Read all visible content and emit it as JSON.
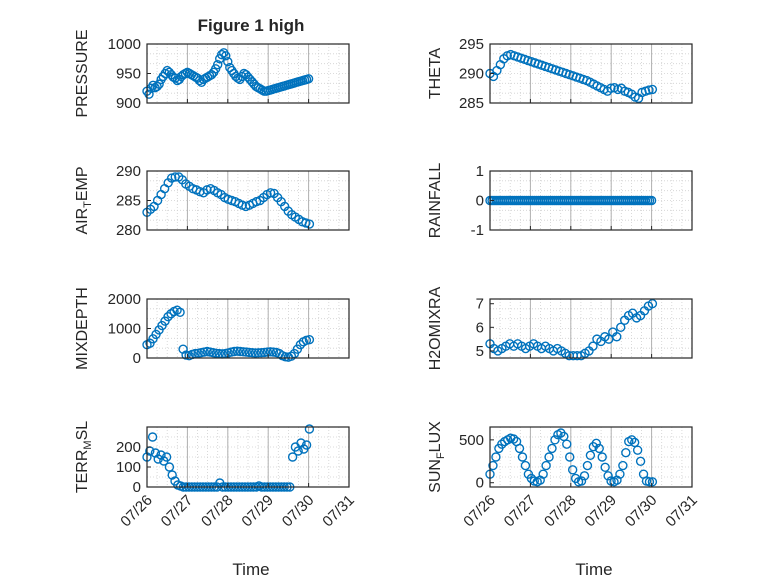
{
  "figure": {
    "title": "Figure 1 high",
    "accent_color": "#0072BD"
  },
  "chart_data": [
    {
      "type": "scatter",
      "title": "Figure 1 high",
      "ylabel": "PRESSURE",
      "ylim": [
        900,
        1000
      ],
      "yticks": [
        "900",
        "950",
        "1000"
      ],
      "x": [
        0.0,
        0.05,
        0.1,
        0.15,
        0.2,
        0.25,
        0.3,
        0.35,
        0.4,
        0.45,
        0.5,
        0.55,
        0.6,
        0.65,
        0.7,
        0.75,
        0.8,
        0.85,
        0.9,
        0.95,
        1.0,
        1.05,
        1.1,
        1.15,
        1.2,
        1.25,
        1.3,
        1.35,
        1.4,
        1.45,
        1.5,
        1.55,
        1.6,
        1.65,
        1.7,
        1.75,
        1.8,
        1.85,
        1.9,
        1.95,
        2.0,
        2.05,
        2.1,
        2.15,
        2.2,
        2.25,
        2.3,
        2.35,
        2.4,
        2.45,
        2.5,
        2.55,
        2.6,
        2.65,
        2.7,
        2.75,
        2.8,
        2.85,
        2.9,
        2.95,
        3.0,
        3.05,
        3.1,
        3.15,
        3.2,
        3.25,
        3.3,
        3.35,
        3.4,
        3.45,
        3.5,
        3.55,
        3.6,
        3.65,
        3.7,
        3.75,
        3.8,
        3.85,
        3.9,
        3.95,
        4.0
      ],
      "y": [
        920,
        915,
        925,
        930,
        926,
        928,
        932,
        940,
        945,
        950,
        955,
        952,
        948,
        944,
        942,
        938,
        940,
        945,
        948,
        950,
        952,
        950,
        948,
        946,
        944,
        942,
        938,
        935,
        940,
        942,
        944,
        946,
        948,
        952,
        958,
        965,
        975,
        982,
        985,
        980,
        970,
        960,
        955,
        950,
        945,
        942,
        940,
        945,
        950,
        948,
        944,
        940,
        936,
        932,
        928,
        926,
        924,
        922,
        920,
        920,
        921,
        922,
        923,
        924,
        925,
        926,
        927,
        928,
        929,
        930,
        931,
        932,
        933,
        934,
        935,
        936,
        937,
        938,
        939,
        940,
        941
      ],
      "x_drawn_end": 4.0
    },
    {
      "type": "scatter",
      "ylabel": "THETA",
      "ylim": [
        285,
        295
      ],
      "yticks": [
        "285",
        "290",
        "295"
      ],
      "y": [
        290,
        289.5,
        290.5,
        291.5,
        292.5,
        293,
        293.2,
        293,
        292.8,
        292.6,
        292.4,
        292.2,
        292,
        291.8,
        291.6,
        291.4,
        291.2,
        291,
        290.8,
        290.6,
        290.4,
        290.2,
        290,
        289.8,
        289.6,
        289.4,
        289.2,
        289,
        288.8,
        288.5,
        288.2,
        287.9,
        287.6,
        287.3,
        287,
        287.5,
        287.6,
        287.3,
        287.5,
        287,
        286.8,
        286.5,
        286,
        285.8,
        286.8,
        287,
        287.2,
        287.3
      ]
    },
    {
      "type": "scatter",
      "ylabel": "AIR_TEMP",
      "ylim": [
        280,
        290
      ],
      "yticks": [
        "280",
        "285",
        "290"
      ],
      "y": [
        283,
        283.5,
        284,
        285,
        286,
        287,
        288,
        288.8,
        289,
        289,
        288.5,
        287.8,
        287.4,
        287,
        286.8,
        286.5,
        286.3,
        286.8,
        287,
        286.7,
        286.3,
        286,
        285.5,
        285.2,
        285,
        284.8,
        284.5,
        284.2,
        284,
        284.2,
        284.5,
        284.8,
        285,
        285.5,
        286,
        286.3,
        286.2,
        285.5,
        284.8,
        284,
        283.2,
        282.6,
        282.2,
        281.8,
        281.4,
        281.2,
        281
      ]
    },
    {
      "type": "scatter",
      "ylabel": "RAINFALL",
      "ylim": [
        -1,
        1
      ],
      "yticks": [
        "-1",
        "0",
        "1"
      ],
      "y": [
        0
      ]
    },
    {
      "type": "scatter",
      "ylabel": "MIXDEPTH",
      "ylim": [
        0,
        2000
      ],
      "yticks": [
        "0",
        "1000",
        "2000"
      ],
      "y": [
        450,
        500,
        650,
        800,
        950,
        1100,
        1250,
        1400,
        1500,
        1580,
        1620,
        1550,
        300,
        100,
        80,
        120,
        150,
        160,
        180,
        200,
        220,
        200,
        180,
        160,
        150,
        140,
        150,
        170,
        200,
        220,
        230,
        220,
        210,
        200,
        190,
        180,
        170,
        175,
        180,
        190,
        200,
        210,
        200,
        190,
        150,
        80,
        40,
        30,
        60,
        150,
        300,
        450,
        550,
        600,
        620
      ]
    },
    {
      "type": "scatter",
      "ylabel": "H2OMIXRA",
      "ylim": [
        4.7,
        7.2
      ],
      "yticks": [
        "5",
        "6",
        "7"
      ],
      "y": [
        5.3,
        5.1,
        5.0,
        5.1,
        5.2,
        5.3,
        5.2,
        5.3,
        5.2,
        5.1,
        5.2,
        5.3,
        5.2,
        5.1,
        5.2,
        5.1,
        5.0,
        5.1,
        5.0,
        4.9,
        4.8,
        4.8,
        4.8,
        4.8,
        4.9,
        5.0,
        5.2,
        5.5,
        5.4,
        5.6,
        5.5,
        5.8,
        5.6,
        6.0,
        6.3,
        6.5,
        6.6,
        6.4,
        6.5,
        6.7,
        6.9,
        7.0
      ]
    },
    {
      "type": "scatter",
      "ylabel": "TERR_MSL",
      "ylim": [
        0,
        300
      ],
      "yticks": [
        "0",
        "100",
        "200"
      ],
      "y": [
        150,
        180,
        250,
        170,
        140,
        160,
        130,
        150,
        100,
        60,
        30,
        10,
        5,
        0,
        0,
        0,
        0,
        0,
        0,
        0,
        0,
        0,
        0,
        0,
        0,
        0,
        20,
        0,
        0,
        0,
        0,
        0,
        0,
        0,
        0,
        0,
        0,
        0,
        0,
        0,
        5,
        0,
        0,
        0,
        0,
        0,
        0,
        0,
        0,
        0,
        0,
        0,
        150,
        200,
        180,
        220,
        190,
        210,
        290
      ]
    },
    {
      "type": "scatter",
      "ylabel": "SUN_FLUX",
      "ylim": [
        -50,
        650
      ],
      "yticks": [
        "0",
        "500"
      ],
      "y": [
        100,
        200,
        300,
        400,
        450,
        480,
        500,
        520,
        510,
        480,
        400,
        300,
        200,
        100,
        50,
        20,
        10,
        30,
        100,
        200,
        300,
        400,
        500,
        560,
        580,
        540,
        450,
        300,
        150,
        50,
        10,
        20,
        80,
        200,
        320,
        420,
        460,
        400,
        300,
        180,
        80,
        20,
        10,
        30,
        100,
        200,
        350,
        480,
        500,
        470,
        380,
        250,
        100,
        20,
        10,
        10
      ]
    }
  ],
  "x_axis": {
    "label": "Time",
    "ticks": [
      "07/26",
      "07/27",
      "07/28",
      "07/29",
      "07/30",
      "07/31"
    ]
  }
}
